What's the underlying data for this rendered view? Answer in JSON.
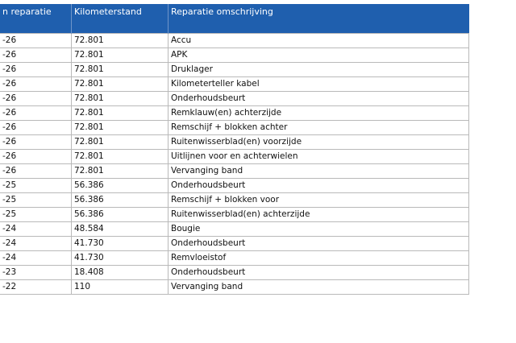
{
  "table": {
    "header": [
      "n reparatie",
      "Kilometerstand",
      "Reparatie omschrijving"
    ],
    "rows": [
      [
        "-26",
        "72.801",
        "Accu"
      ],
      [
        "-26",
        "72.801",
        "APK"
      ],
      [
        "-26",
        "72.801",
        "Druklager"
      ],
      [
        "-26",
        "72.801",
        "Kilometerteller kabel"
      ],
      [
        "-26",
        "72.801",
        "Onderhoudsbeurt"
      ],
      [
        "-26",
        "72.801",
        "Remklauw(en) achterzijde"
      ],
      [
        "-26",
        "72.801",
        "Remschijf + blokken achter"
      ],
      [
        "-26",
        "72.801",
        "Ruitenwisserblad(en) voorzijde"
      ],
      [
        "-26",
        "72.801",
        "Uitlijnen voor en achterwielen"
      ],
      [
        "-26",
        "72.801",
        "Vervanging band"
      ],
      [
        "-25",
        "56.386",
        "Onderhoudsbeurt"
      ],
      [
        "-25",
        "56.386",
        "Remschijf + blokken voor"
      ],
      [
        "-25",
        "56.386",
        "Ruitenwisserblad(en) achterzijde"
      ],
      [
        "-24",
        "48.584",
        "Bougie"
      ],
      [
        "-24",
        "41.730",
        "Onderhoudsbeurt"
      ],
      [
        "-24",
        "41.730",
        "Remvloeistof"
      ],
      [
        "-23",
        "18.408",
        "Onderhoudsbeurt"
      ],
      [
        "-22",
        "110",
        "Vervanging band"
      ]
    ]
  }
}
